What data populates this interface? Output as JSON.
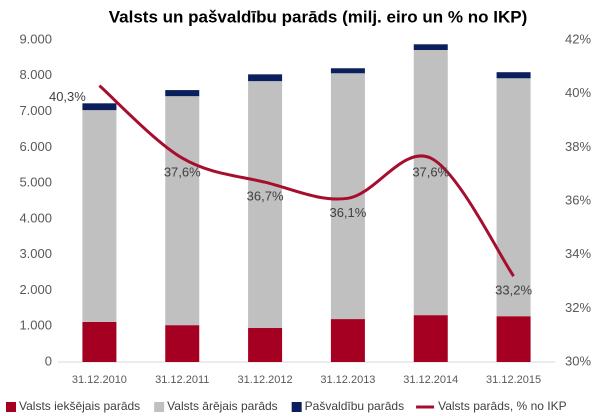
{
  "chart_data": {
    "type": "bar",
    "title": "Valsts un pašvaldību parāds (milj. eiro un % no IKP)",
    "categories": [
      "31.12.2010",
      "31.12.2011",
      "31.12.2012",
      "31.12.2013",
      "31.12.2014",
      "31.12.2015"
    ],
    "stacked": true,
    "series": [
      {
        "name": "Valsts iekšējais parāds",
        "color": "#a50021",
        "values": [
          1120,
          1030,
          950,
          1200,
          1310,
          1280
        ]
      },
      {
        "name": "Valsts ārējais parāds",
        "color": "#c0c0c0",
        "values": [
          5920,
          6400,
          6900,
          6870,
          7410,
          6650
        ]
      },
      {
        "name": "Pašvaldību parāds",
        "color": "#0a1f5c",
        "values": [
          190,
          170,
          190,
          140,
          160,
          170
        ]
      },
      {
        "name": "Valsts parāds, % no IKP",
        "color": "#a50e2d",
        "type": "line",
        "axis": "y2",
        "values": [
          40.3,
          37.6,
          36.7,
          36.1,
          37.6,
          33.2
        ],
        "value_labels": [
          "40,3%",
          "37,6%",
          "36,7%",
          "36,1%",
          "37,6%",
          "33,2%"
        ]
      }
    ],
    "ylim": [
      0,
      9000
    ],
    "yticks": [
      0,
      {
        "value": 1000,
        "label": "1.000"
      },
      {
        "value": 2000,
        "label": "2.000"
      },
      {
        "value": 3000,
        "label": "3.000"
      },
      {
        "value": 4000,
        "label": "4.000"
      },
      {
        "value": 5000,
        "label": "5.000"
      },
      {
        "value": 6000,
        "label": "6.000"
      },
      {
        "value": 7000,
        "label": "7.000"
      },
      {
        "value": 8000,
        "label": "8.000"
      },
      {
        "value": 9000,
        "label": "9.000"
      }
    ],
    "y2lim": [
      30,
      42
    ],
    "y2ticks": [
      {
        "value": 30,
        "label": "30%"
      },
      {
        "value": 32,
        "label": "32%"
      },
      {
        "value": 34,
        "label": "34%"
      },
      {
        "value": 36,
        "label": "36%"
      },
      {
        "value": 38,
        "label": "38%"
      },
      {
        "value": 40,
        "label": "40%"
      },
      {
        "value": 42,
        "label": "42%"
      }
    ],
    "legend": "bottom"
  }
}
